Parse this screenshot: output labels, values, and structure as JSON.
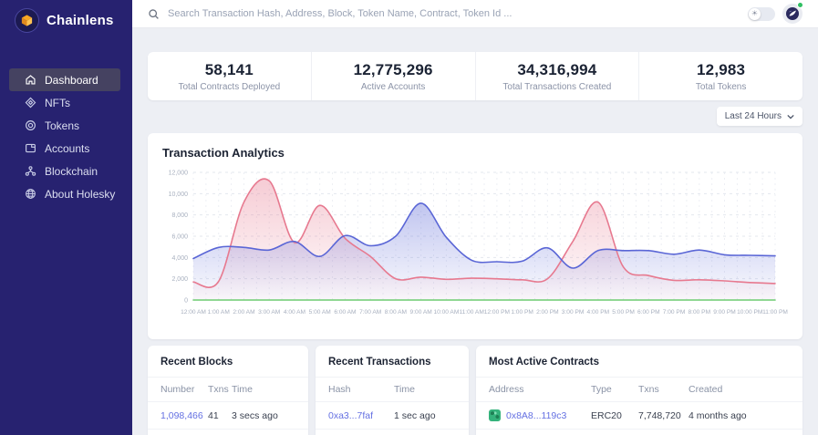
{
  "app_title": "Chainlens",
  "sidebar": {
    "logo_text": "Chainlens",
    "items": [
      {
        "label": "Dashboard",
        "icon": "home-icon",
        "active": true
      },
      {
        "label": "NFTs",
        "icon": "nft-icon",
        "active": false
      },
      {
        "label": "Tokens",
        "icon": "tokens-icon",
        "active": false
      },
      {
        "label": "Accounts",
        "icon": "accounts-icon",
        "active": false
      },
      {
        "label": "Blockchain",
        "icon": "blockchain-icon",
        "active": false
      },
      {
        "label": "About Holesky",
        "icon": "globe-icon",
        "active": false
      }
    ]
  },
  "topbar": {
    "search_placeholder": "Search Transaction Hash, Address, Block, Token Name, Contract, Token Id ...",
    "theme_toggle_state": "off",
    "avatar_status": "online"
  },
  "stats": [
    {
      "value": "58,141",
      "label": "Total Contracts Deployed"
    },
    {
      "value": "12,775,296",
      "label": "Active Accounts"
    },
    {
      "value": "34,316,994",
      "label": "Total Transactions Created"
    },
    {
      "value": "12,983",
      "label": "Total Tokens"
    }
  ],
  "time_filter": {
    "label": "Last 24 Hours"
  },
  "analytics": {
    "title": "Transaction Analytics"
  },
  "chart_data": {
    "type": "area",
    "title": "Transaction Analytics",
    "x": [
      "12:00 AM",
      "1:00 AM",
      "2:00 AM",
      "3:00 AM",
      "4:00 AM",
      "5:00 AM",
      "6:00 AM",
      "7:00 AM",
      "8:00 AM",
      "9:00 AM",
      "10:00 AM",
      "11:00 AM",
      "12:00 PM",
      "1:00 PM",
      "2:00 PM",
      "3:00 PM",
      "4:00 PM",
      "5:00 PM",
      "6:00 PM",
      "7:00 PM",
      "8:00 PM",
      "9:00 PM",
      "10:00 PM",
      "11:00 PM"
    ],
    "ylim": [
      0,
      12000
    ],
    "yticks": [
      0,
      2000,
      4000,
      6000,
      8000,
      10000,
      12000
    ],
    "grid": true,
    "legend": "none",
    "series": [
      {
        "name": "pink-series",
        "color": "#e7798f",
        "fill": true,
        "values": [
          1700,
          1750,
          9200,
          11200,
          5400,
          8900,
          5800,
          4100,
          2000,
          2150,
          1950,
          2050,
          2000,
          1900,
          2000,
          5500,
          9200,
          3100,
          2300,
          1850,
          1900,
          1800,
          1650,
          1550
        ]
      },
      {
        "name": "blue-series",
        "color": "#5a66d6",
        "fill": true,
        "values": [
          3900,
          4950,
          4950,
          4700,
          5500,
          4100,
          6050,
          5100,
          6000,
          9100,
          5900,
          3750,
          3600,
          3650,
          4900,
          3000,
          4650,
          4650,
          4650,
          4300,
          4700,
          4250,
          4200,
          4150
        ]
      },
      {
        "name": "green-series",
        "color": "#6fcb72",
        "fill": false,
        "values": [
          0,
          0,
          0,
          0,
          0,
          0,
          0,
          0,
          0,
          0,
          0,
          0,
          0,
          0,
          0,
          0,
          0,
          0,
          0,
          0,
          0,
          0,
          0,
          0
        ]
      }
    ]
  },
  "cards": [
    {
      "title": "Recent Blocks",
      "headers": [
        "Number",
        "Txns",
        "Time"
      ],
      "rows": [
        [
          "1,098,466",
          "41",
          "3 secs ago"
        ]
      ],
      "link_col": 0,
      "icon_col": -1
    },
    {
      "title": "Recent Transactions",
      "headers": [
        "Hash",
        "Time"
      ],
      "rows": [
        [
          "0xa3...7faf",
          "1 sec ago"
        ]
      ],
      "link_col": 0,
      "icon_col": -1
    },
    {
      "title": "Most Active Contracts",
      "headers": [
        "Address",
        "Type",
        "Txns",
        "Created"
      ],
      "rows": [
        [
          "0x8A8...119c3",
          "ERC20",
          "7,748,720",
          "4 months ago"
        ]
      ],
      "link_col": 0,
      "icon_col": 0
    }
  ],
  "colors": {
    "sidebar_bg": "#272270",
    "sidebar_active_bg": "#454261",
    "accent_link": "#6470e2",
    "pink_series": "#e7798f",
    "blue_series": "#5a66d6",
    "green_series": "#6fcb72",
    "status_online": "#2fbf62",
    "content_bg": "#edeff4"
  }
}
